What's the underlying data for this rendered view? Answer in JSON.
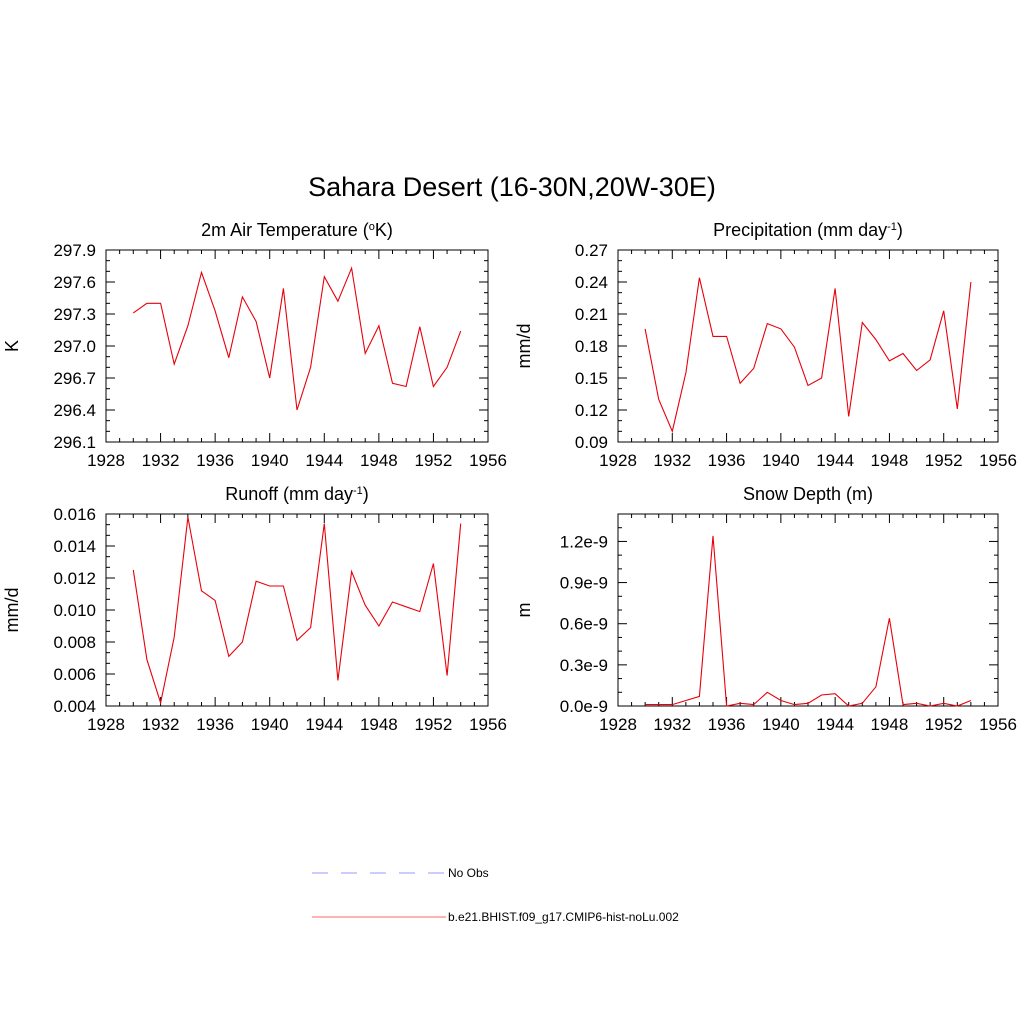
{
  "figure": {
    "title": "Sahara Desert (16-30N,20W-30E)"
  },
  "legend": {
    "entries": [
      {
        "label": "No Obs",
        "style": "dashed",
        "color": "#9999ff"
      },
      {
        "label": "b.e21.BHIST.f09_g17.CMIP6-hist-noLu.002",
        "style": "solid",
        "color": "#ff6666"
      }
    ]
  },
  "series_color": "#e8000b",
  "chart_data": [
    {
      "type": "line",
      "title": "2m Air Temperature (",
      "title_sup": "o",
      "title_after": "K)",
      "ylabel": "K",
      "xlim": [
        1928,
        1956
      ],
      "ylim": [
        296.1,
        297.9
      ],
      "xticks": [
        "1928",
        "1932",
        "1936",
        "1940",
        "1944",
        "1948",
        "1952",
        "1956"
      ],
      "yticks": [
        "296.1",
        "296.4",
        "296.7",
        "297.0",
        "297.3",
        "297.6",
        "297.9"
      ],
      "x": [
        1930,
        1931,
        1932,
        1933,
        1934,
        1935,
        1936,
        1937,
        1938,
        1939,
        1940,
        1941,
        1942,
        1943,
        1944,
        1945,
        1946,
        1947,
        1948,
        1949,
        1950,
        1951,
        1952,
        1953,
        1954
      ],
      "series": [
        {
          "values": [
            297.31,
            297.4,
            297.4,
            296.83,
            297.19,
            297.69,
            297.33,
            296.89,
            297.46,
            297.23,
            296.7,
            297.54,
            296.4,
            296.8,
            297.65,
            297.42,
            297.73,
            296.93,
            297.19,
            296.65,
            296.62,
            297.18,
            296.62,
            296.8,
            297.14
          ]
        }
      ]
    },
    {
      "type": "line",
      "title": "Precipitation (mm day",
      "title_sup": "-1",
      "title_after": ")",
      "ylabel": "mm/d",
      "xlim": [
        1928,
        1956
      ],
      "ylim": [
        0.09,
        0.27
      ],
      "xticks": [
        "1928",
        "1932",
        "1936",
        "1940",
        "1944",
        "1948",
        "1952",
        "1956"
      ],
      "yticks": [
        "0.09",
        "0.12",
        "0.15",
        "0.18",
        "0.21",
        "0.24",
        "0.27"
      ],
      "x": [
        1930,
        1931,
        1932,
        1933,
        1934,
        1935,
        1936,
        1937,
        1938,
        1939,
        1940,
        1941,
        1942,
        1943,
        1944,
        1945,
        1946,
        1947,
        1948,
        1949,
        1950,
        1951,
        1952,
        1953,
        1954
      ],
      "series": [
        {
          "values": [
            0.196,
            0.13,
            0.1,
            0.155,
            0.244,
            0.189,
            0.189,
            0.145,
            0.159,
            0.201,
            0.196,
            0.179,
            0.143,
            0.15,
            0.234,
            0.114,
            0.202,
            0.186,
            0.166,
            0.173,
            0.157,
            0.167,
            0.213,
            0.121,
            0.24
          ]
        }
      ]
    },
    {
      "type": "line",
      "title": "Runoff (mm day",
      "title_sup": "-1",
      "title_after": ")",
      "ylabel": "mm/d",
      "xlim": [
        1928,
        1956
      ],
      "ylim": [
        0.004,
        0.016
      ],
      "xticks": [
        "1928",
        "1932",
        "1936",
        "1940",
        "1944",
        "1948",
        "1952",
        "1956"
      ],
      "yticks": [
        "0.004",
        "0.006",
        "0.008",
        "0.010",
        "0.012",
        "0.014",
        "0.016"
      ],
      "x": [
        1930,
        1931,
        1932,
        1933,
        1934,
        1935,
        1936,
        1937,
        1938,
        1939,
        1940,
        1941,
        1942,
        1943,
        1944,
        1945,
        1946,
        1947,
        1948,
        1949,
        1950,
        1951,
        1952,
        1953,
        1954
      ],
      "series": [
        {
          "values": [
            0.0125,
            0.0069,
            0.0042,
            0.0083,
            0.0158,
            0.0112,
            0.0106,
            0.0071,
            0.008,
            0.0118,
            0.0115,
            0.0115,
            0.0081,
            0.0089,
            0.0154,
            0.0056,
            0.0124,
            0.0103,
            0.009,
            0.0105,
            0.0102,
            0.0099,
            0.0129,
            0.0059,
            0.0154
          ]
        }
      ]
    },
    {
      "type": "line",
      "title": "Snow Depth (m)",
      "title_sup": "",
      "title_after": "",
      "ylabel": "m",
      "xlim": [
        1928,
        1956
      ],
      "ylim": [
        0,
        1.4
      ],
      "yunit": "e-9",
      "xticks": [
        "1928",
        "1932",
        "1936",
        "1940",
        "1944",
        "1948",
        "1952",
        "1956"
      ],
      "yticks": [
        "0.0e-9",
        "0.3e-9",
        "0.6e-9",
        "0.9e-9",
        "1.2e-9"
      ],
      "ytick_values": [
        0,
        0.3,
        0.6,
        0.9,
        1.2
      ],
      "x": [
        1930,
        1931,
        1932,
        1933,
        1934,
        1935,
        1936,
        1937,
        1938,
        1939,
        1940,
        1941,
        1942,
        1943,
        1944,
        1945,
        1946,
        1947,
        1948,
        1949,
        1950,
        1951,
        1952,
        1953,
        1954
      ],
      "series": [
        {
          "values": [
            0.01,
            0.01,
            0.01,
            0.04,
            0.07,
            1.24,
            0.0,
            0.02,
            0.01,
            0.1,
            0.04,
            0.01,
            0.02,
            0.08,
            0.09,
            0.0,
            0.02,
            0.14,
            0.64,
            0.01,
            0.02,
            0.0,
            0.02,
            0.0,
            0.04
          ]
        }
      ]
    }
  ]
}
